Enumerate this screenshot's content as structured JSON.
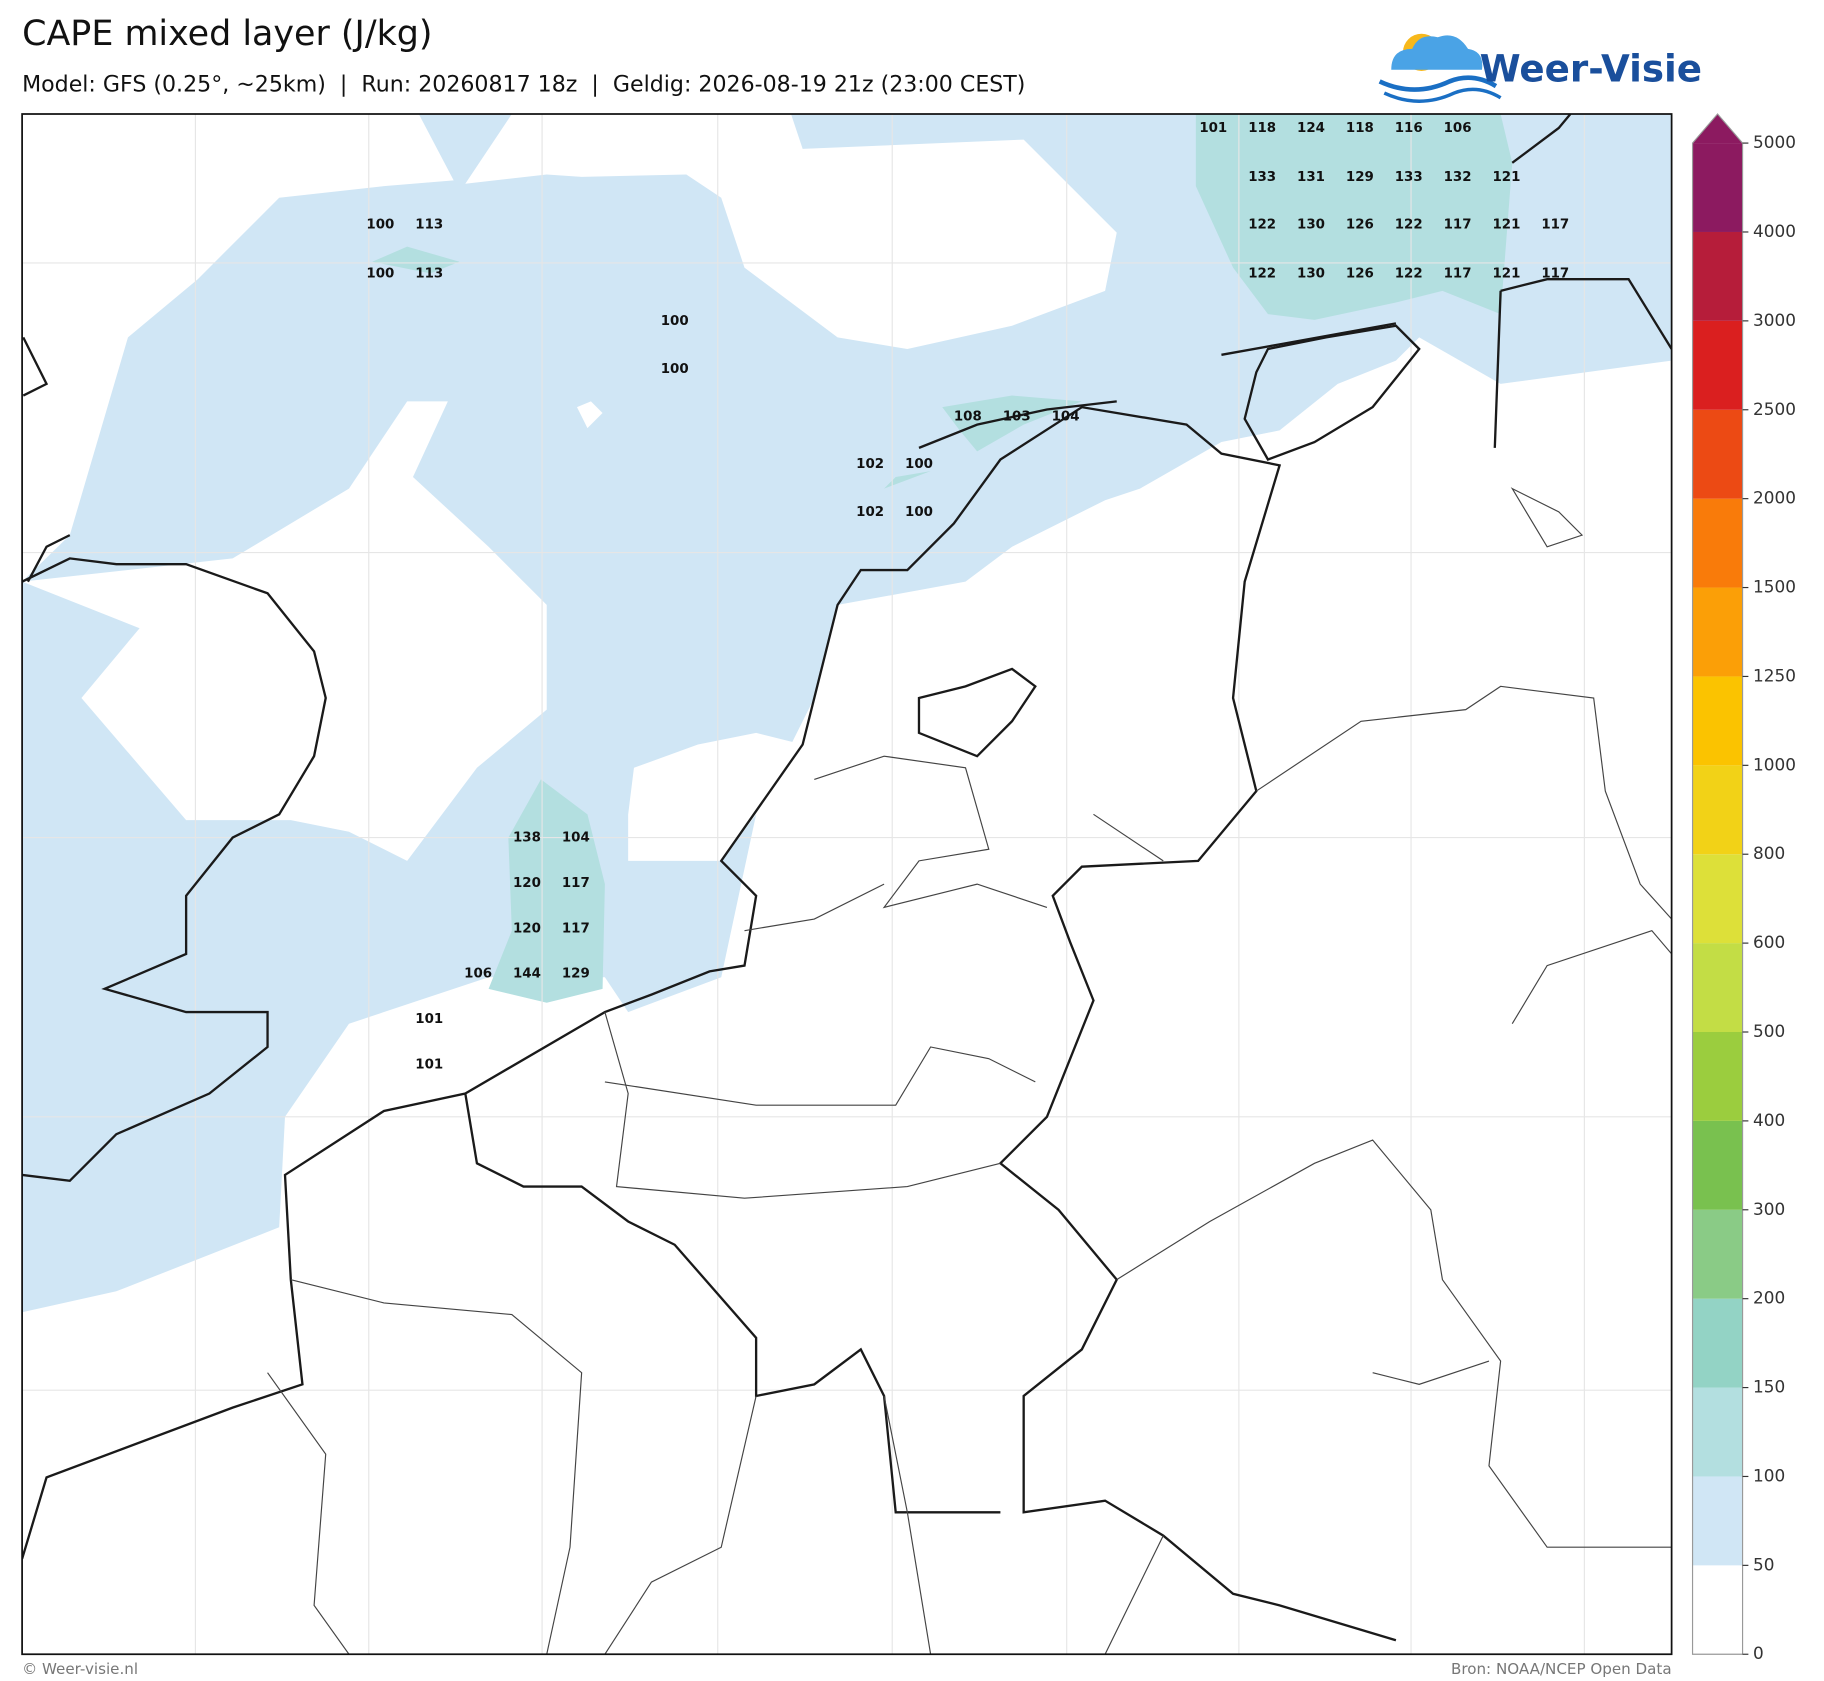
{
  "header": {
    "title": "CAPE mixed layer (J/kg)",
    "subtitle": "Model: GFS (0.25°, ~25km)  |  Run: 20260817 18z  |  Geldig: 2026-08-19 21z (23:00 CEST)"
  },
  "logo": {
    "text": "Weer-Visie"
  },
  "map": {
    "labels": [
      [
        101,
        118,
        124,
        118,
        116,
        106
      ],
      [
        133,
        131,
        129,
        133,
        132,
        121
      ],
      [
        122,
        130,
        126,
        122,
        117,
        121,
        117
      ],
      [
        122,
        130,
        126,
        122,
        117,
        121,
        117
      ],
      [
        100,
        113
      ],
      [
        100,
        113
      ],
      [
        100
      ],
      [
        100
      ],
      [
        108,
        103,
        104
      ],
      [
        102,
        100
      ],
      [
        102,
        100
      ],
      [
        138,
        104
      ],
      [
        120,
        117
      ],
      [
        120,
        117
      ],
      [
        106,
        144,
        129
      ],
      [
        101
      ],
      [
        101
      ]
    ]
  },
  "colorbar": {
    "ticks": [
      0,
      50,
      100,
      150,
      200,
      300,
      400,
      500,
      600,
      800,
      1000,
      1250,
      1500,
      2000,
      2500,
      3000,
      4000,
      5000
    ],
    "colors": [
      "#ffffff",
      "#d0e6f5",
      "#b3dfe0",
      "#93d3c5",
      "#8acb86",
      "#79c14f",
      "#9bcd3e",
      "#c3dd45",
      "#dde039",
      "#f2d217",
      "#fbc300",
      "#fb9f07",
      "#f97b0a",
      "#ec4a14",
      "#da1f1f",
      "#b61d3a",
      "#8c1a60"
    ]
  },
  "footer": {
    "left": "© Weer-visie.nl",
    "right": "Bron: NOAA/NCEP Open Data"
  }
}
